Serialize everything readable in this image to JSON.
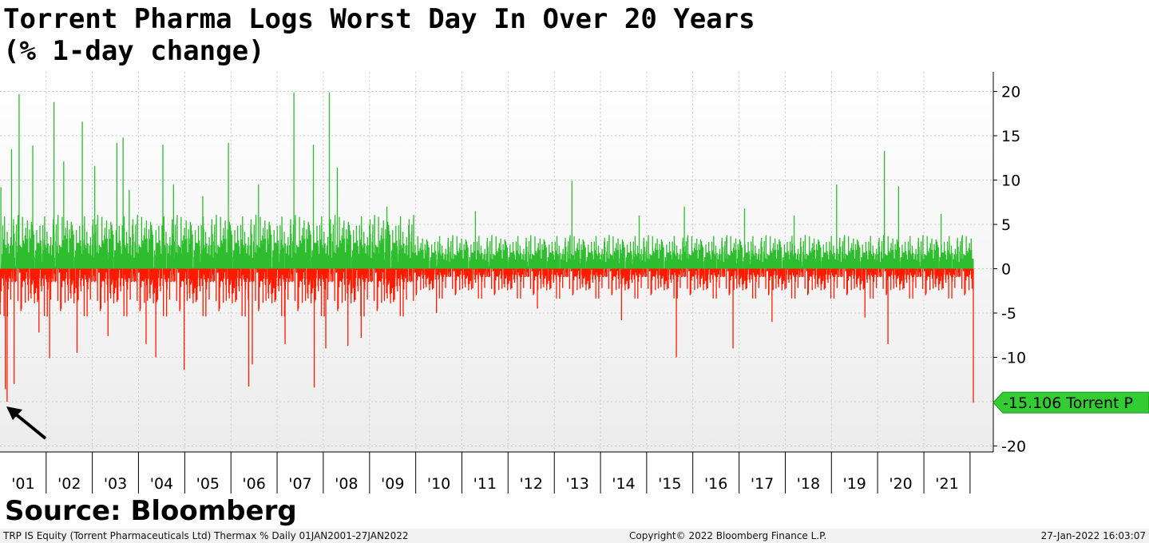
{
  "title_lines": [
    "Torrent Pharma Logs Worst Day In Over 20 Years",
    "(% 1-day change)"
  ],
  "source": "Source: Bloomberg",
  "footer": {
    "left": "TRP IS Equity (Torrent Pharmaceuticals Ltd) Thermax %  Daily 01JAN2001-27JAN2022",
    "center": "Copyright© 2022 Bloomberg Finance L.P.",
    "right": "27-Jan-2022 16:03:07"
  },
  "colors": {
    "up": "#2ebd2e",
    "down": "#ff1a00",
    "last_label_bg": "#33cc33",
    "grid": "#c8c8c8",
    "arrow": "#000000"
  },
  "chart_data": {
    "type": "bar",
    "title": "Torrent Pharma Logs Worst Day In Over 20 Years",
    "subtitle": "(% 1-day change)",
    "xlabel": "",
    "ylabel": "",
    "x_range": [
      "2001-01-01",
      "2022-01-27"
    ],
    "ylim": [
      -20.5,
      22
    ],
    "y_ticks": [
      20,
      15,
      10,
      5,
      0,
      -5,
      -10,
      -15,
      -20
    ],
    "y_axis_position": "right",
    "x_tick_labels": [
      "'01",
      "'02",
      "'03",
      "'04",
      "'05",
      "'06",
      "'07",
      "'08",
      "'09",
      "'10",
      "'11",
      "'12",
      "'13",
      "'14",
      "'15",
      "'16",
      "'17",
      "'18",
      "'19",
      "'20",
      "'21"
    ],
    "grid": true,
    "last_value": {
      "value": -15.106,
      "label": "-15.106",
      "series": "Torrent P"
    },
    "series": [
      {
        "name": "Torrent P",
        "frequency": "daily",
        "notable_points": [
          {
            "date": "2001-01-08",
            "value": 9.2
          },
          {
            "date": "2001-02-12",
            "value": -13.6
          },
          {
            "date": "2001-02-26",
            "value": -15.0
          },
          {
            "date": "2001-04-02",
            "value": 13.5
          },
          {
            "date": "2001-04-23",
            "value": -13.0
          },
          {
            "date": "2001-06-01",
            "value": 19.7
          },
          {
            "date": "2001-09-17",
            "value": 13.9
          },
          {
            "date": "2001-11-05",
            "value": -7.2
          },
          {
            "date": "2002-01-28",
            "value": -10.1
          },
          {
            "date": "2002-03-04",
            "value": 18.8
          },
          {
            "date": "2002-05-20",
            "value": 12.1
          },
          {
            "date": "2002-09-02",
            "value": -9.5
          },
          {
            "date": "2002-10-14",
            "value": 16.6
          },
          {
            "date": "2003-01-20",
            "value": 11.6
          },
          {
            "date": "2003-05-05",
            "value": -7.6
          },
          {
            "date": "2003-07-14",
            "value": 14.2
          },
          {
            "date": "2003-09-01",
            "value": 14.8
          },
          {
            "date": "2003-10-20",
            "value": 8.9
          },
          {
            "date": "2004-03-01",
            "value": -8.5
          },
          {
            "date": "2004-05-17",
            "value": -10.0
          },
          {
            "date": "2004-07-12",
            "value": 14.0
          },
          {
            "date": "2004-10-04",
            "value": 9.5
          },
          {
            "date": "2004-12-27",
            "value": -11.4
          },
          {
            "date": "2005-05-23",
            "value": 8.2
          },
          {
            "date": "2005-12-12",
            "value": 14.2
          },
          {
            "date": "2006-05-22",
            "value": -13.3
          },
          {
            "date": "2006-06-19",
            "value": -10.8
          },
          {
            "date": "2006-08-07",
            "value": 9.5
          },
          {
            "date": "2007-03-05",
            "value": -8.5
          },
          {
            "date": "2007-05-14",
            "value": 19.9
          },
          {
            "date": "2007-10-22",
            "value": -13.4
          },
          {
            "date": "2007-10-15",
            "value": 14.0
          },
          {
            "date": "2008-01-21",
            "value": -9.0
          },
          {
            "date": "2008-02-18",
            "value": 19.9
          },
          {
            "date": "2008-04-21",
            "value": 11.4
          },
          {
            "date": "2008-07-14",
            "value": -8.7
          },
          {
            "date": "2008-10-27",
            "value": -7.8
          },
          {
            "date": "2009-05-18",
            "value": 7.0
          },
          {
            "date": "2010-06-14",
            "value": -5.0
          },
          {
            "date": "2011-04-18",
            "value": 6.5
          },
          {
            "date": "2012-08-20",
            "value": -4.5
          },
          {
            "date": "2013-05-20",
            "value": 9.9
          },
          {
            "date": "2014-06-16",
            "value": -5.8
          },
          {
            "date": "2014-11-03",
            "value": 6.0
          },
          {
            "date": "2015-08-24",
            "value": -10.0
          },
          {
            "date": "2015-10-26",
            "value": 7.0
          },
          {
            "date": "2016-11-14",
            "value": -9.0
          },
          {
            "date": "2017-02-13",
            "value": 6.8
          },
          {
            "date": "2017-09-18",
            "value": -6.0
          },
          {
            "date": "2018-03-12",
            "value": 6.0
          },
          {
            "date": "2019-02-11",
            "value": 9.5
          },
          {
            "date": "2019-09-23",
            "value": -5.5
          },
          {
            "date": "2020-02-24",
            "value": 13.3
          },
          {
            "date": "2020-03-23",
            "value": -8.5
          },
          {
            "date": "2020-06-15",
            "value": 9.3
          },
          {
            "date": "2021-05-17",
            "value": 6.2
          },
          {
            "date": "2022-01-27",
            "value": -15.106
          }
        ]
      }
    ]
  }
}
